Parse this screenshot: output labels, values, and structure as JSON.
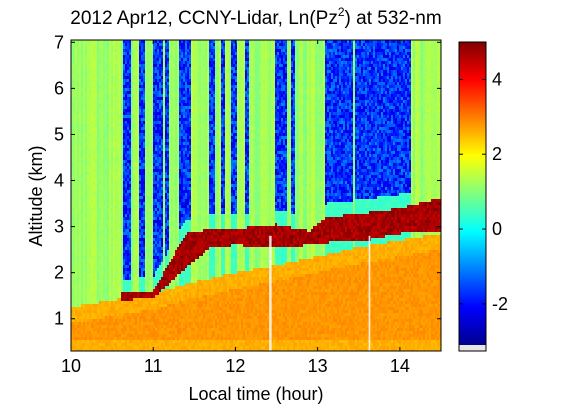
{
  "chart_data": {
    "type": "heatmap",
    "title": "2012 Apr12, CCNY-Lidar, Ln(Pz",
    "title_sup": "2",
    "title_suffix": ") at 532-nm",
    "xlabel": "Local time (hour)",
    "ylabel": "Altitude (km)",
    "xlim": [
      10,
      14.5
    ],
    "ylim": [
      0.3,
      7.05
    ],
    "xticks": [
      10,
      11,
      12,
      13,
      14
    ],
    "yticks": [
      1,
      2,
      3,
      4,
      5,
      6,
      7
    ],
    "colorbar": {
      "range": [
        -3.1,
        5
      ],
      "ticks": [
        -2,
        0,
        2,
        4
      ],
      "tick_labels": [
        "-2",
        "0",
        "2",
        "4"
      ],
      "colormap": "jet"
    },
    "layers": {
      "surface_value": 2.8,
      "aerosol_layer_value": 3.2,
      "clear_upper_value": -1.7,
      "cloud_value": 5.0,
      "background_value": 1.2,
      "aerosol_top_km": [
        [
          10.0,
          1.05
        ],
        [
          10.5,
          1.2
        ],
        [
          11.0,
          1.35
        ],
        [
          11.4,
          1.55
        ],
        [
          12.0,
          1.8
        ],
        [
          12.6,
          2.0
        ],
        [
          13.0,
          2.15
        ],
        [
          13.5,
          2.35
        ],
        [
          14.0,
          2.5
        ],
        [
          14.5,
          2.65
        ]
      ],
      "cloud_base_km": [
        [
          10.6,
          1.4
        ],
        [
          11.0,
          1.45
        ],
        [
          11.4,
          2.1
        ],
        [
          11.7,
          2.55
        ],
        [
          12.0,
          2.6
        ],
        [
          12.5,
          2.55
        ],
        [
          12.9,
          2.6
        ],
        [
          13.1,
          2.65
        ],
        [
          13.6,
          2.7
        ],
        [
          14.0,
          2.85
        ],
        [
          14.45,
          2.9
        ]
      ],
      "cloud_top_km": [
        [
          10.6,
          1.55
        ],
        [
          11.0,
          1.6
        ],
        [
          11.4,
          2.85
        ],
        [
          11.7,
          2.95
        ],
        [
          12.0,
          2.95
        ],
        [
          12.5,
          3.05
        ],
        [
          12.9,
          2.9
        ],
        [
          13.1,
          3.2
        ],
        [
          13.6,
          3.3
        ],
        [
          14.0,
          3.4
        ],
        [
          14.45,
          3.6
        ]
      ]
    },
    "clear_intervals_hours": [
      [
        10.64,
        10.72
      ],
      [
        10.83,
        10.9
      ],
      [
        11.0,
        11.11
      ],
      [
        11.14,
        11.2
      ],
      [
        11.32,
        11.45
      ],
      [
        11.68,
        11.76
      ],
      [
        11.82,
        11.88
      ],
      [
        11.95,
        12.02
      ],
      [
        12.11,
        12.17
      ],
      [
        12.48,
        12.62
      ],
      [
        12.67,
        12.73
      ],
      [
        13.1,
        13.42
      ],
      [
        13.46,
        14.14
      ]
    ],
    "data_gaps_hours": [
      [
        12.41,
        12.44
      ],
      [
        13.62,
        13.64
      ]
    ]
  }
}
